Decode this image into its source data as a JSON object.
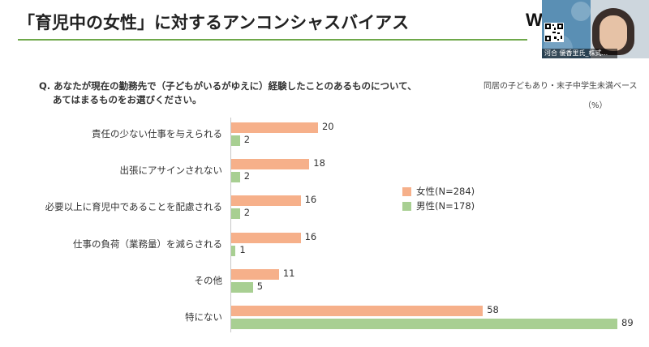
{
  "slide": {
    "title": "「育児中の女性」に対するアンコンシャスバイアス",
    "logo_text": "W",
    "base_note": "同居の子どもあり・末子中学生未満ベース",
    "unit": "（%）",
    "question_line1": "Q. あなたが現在の勤務先で（子どもがいるがゆえに）経験したことのあるものについて、",
    "question_line2": "あてはまるものをお選びください。"
  },
  "video": {
    "participant_name": "河合 優香里氏_株式...",
    "overlay_text": "..."
  },
  "colors": {
    "female": "#f6b08a",
    "male": "#a8cf92",
    "accent_rule": "#6ea84a"
  },
  "chart_data": {
    "type": "bar",
    "orientation": "horizontal",
    "categories": [
      "責任の少ない仕事を与えられる",
      "出張にアサインされない",
      "必要以上に育児中であることを配慮される",
      "仕事の負荷（業務量）を減らされる",
      "その他",
      "特にない"
    ],
    "series": [
      {
        "name": "女性(N=284)",
        "values": [
          20,
          18,
          16,
          16,
          11,
          58
        ]
      },
      {
        "name": "男性(N=178)",
        "values": [
          2,
          2,
          2,
          1,
          5,
          89
        ]
      }
    ],
    "xlim": [
      0,
      92
    ],
    "legend": "right"
  }
}
